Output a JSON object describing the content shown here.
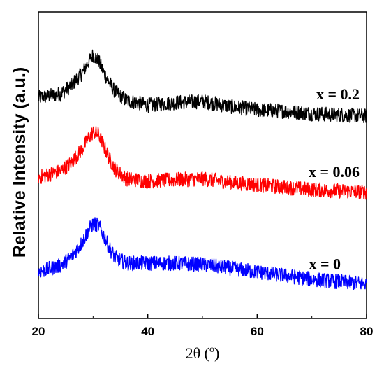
{
  "chart_data": {
    "type": "line",
    "title": "",
    "xlabel": {
      "base": "2θ (",
      "sup": "o",
      "tail": ")"
    },
    "ylabel": "Relative Intensity (a.u.)",
    "xlim": [
      20,
      80
    ],
    "xticks": [
      "20",
      "40",
      "60",
      "80"
    ],
    "grid": false,
    "legend": "inline labels at right end of each curve",
    "series": [
      {
        "name": "x = 0.2",
        "color": "#000000",
        "x": [
          20,
          24,
          26,
          28,
          29,
          30,
          31,
          32,
          33,
          34,
          36,
          40,
          45,
          50,
          55,
          60,
          65,
          70,
          75,
          80
        ],
        "values": [
          0.8,
          0.83,
          0.9,
          1.0,
          1.08,
          1.15,
          1.1,
          1.0,
          0.92,
          0.85,
          0.78,
          0.74,
          0.76,
          0.77,
          0.73,
          0.7,
          0.69,
          0.67,
          0.66,
          0.65
        ]
      },
      {
        "name": "x = 0.06",
        "color": "#ff0000",
        "x": [
          20,
          24,
          26,
          28,
          29,
          30,
          31,
          32,
          33,
          34,
          36,
          40,
          45,
          50,
          55,
          60,
          65,
          70,
          75,
          80
        ],
        "values": [
          0.15,
          0.2,
          0.27,
          0.38,
          0.46,
          0.52,
          0.5,
          0.4,
          0.3,
          0.22,
          0.14,
          0.12,
          0.13,
          0.14,
          0.11,
          0.09,
          0.07,
          0.05,
          0.04,
          0.03
        ]
      },
      {
        "name": "x = 0",
        "color": "#0000ff",
        "x": [
          20,
          24,
          26,
          28,
          29,
          30,
          31,
          32,
          33,
          34,
          36,
          40,
          45,
          50,
          55,
          60,
          65,
          70,
          75,
          80
        ],
        "values": [
          -0.62,
          -0.57,
          -0.5,
          -0.38,
          -0.29,
          -0.23,
          -0.24,
          -0.33,
          -0.43,
          -0.5,
          -0.55,
          -0.55,
          -0.55,
          -0.56,
          -0.59,
          -0.62,
          -0.65,
          -0.68,
          -0.7,
          -0.72
        ]
      }
    ]
  }
}
